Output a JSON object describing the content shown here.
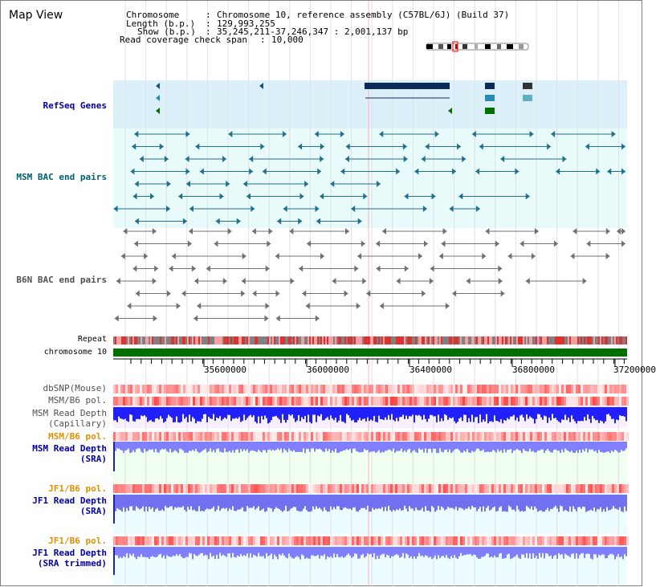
{
  "page": {
    "title": "Map View"
  },
  "info": {
    "chromosome_label": "Chromosome",
    "chromosome_value": "Chromosome 10, reference assembly (C57BL/6J) (Build 37)",
    "length_label": "Length (b.p.)",
    "length_value": "129,993,255",
    "show_label": "Show (b.p.)",
    "show_value": "35,245,211-37,246,347 : 2,001,137 bp",
    "coverage_label": "Read coverage check span",
    "coverage_value": "10,000"
  },
  "tracks": {
    "refseq": "RefSeq Genes",
    "msm_bac": "MSM BAC end pairs",
    "b6n_bac": "B6N BAC end pairs",
    "repeat": "Repeat",
    "chromosome": "chromosome 10",
    "dbsnp": "dbSNP(Mouse)",
    "msm_pol": "MSM/B6 pol.",
    "msm_depth_cap_1": "MSM Read Depth",
    "msm_depth_cap_2": "(Capillary)",
    "msm_pol_2": "MSM/B6 pol.",
    "msm_depth_sra_1": "MSM Read Depth",
    "msm_depth_sra_2": "(SRA)",
    "jf1_pol": "JF1/B6 pol.",
    "jf1_depth_sra_1": "JF1 Read Depth",
    "jf1_depth_sra_2": "(SRA)",
    "jf1_pol_2": "JF1/B6 pol.",
    "jf1_depth_trim_1": "JF1 Read Depth",
    "jf1_depth_trim_2": "(SRA trimmed)"
  },
  "axis": {
    "ticks": [
      "35600000",
      "36000000",
      "36400000",
      "36800000",
      "37200000"
    ]
  },
  "colors": {
    "refseq_bg": "#dcf0fa",
    "bac_bg": "#e8fafa",
    "msm_feature": "#1f6f8f",
    "b6n_feature": "#707070",
    "repeat_red": "#e03030",
    "repeat_gray": "#808080",
    "chromosome_green": "#007000",
    "depth_blue": "#2020ff",
    "depth_light": "#8080ff",
    "label_blue": "#0000a0",
    "label_orange": "#e09000",
    "label_teal": "#006070"
  }
}
